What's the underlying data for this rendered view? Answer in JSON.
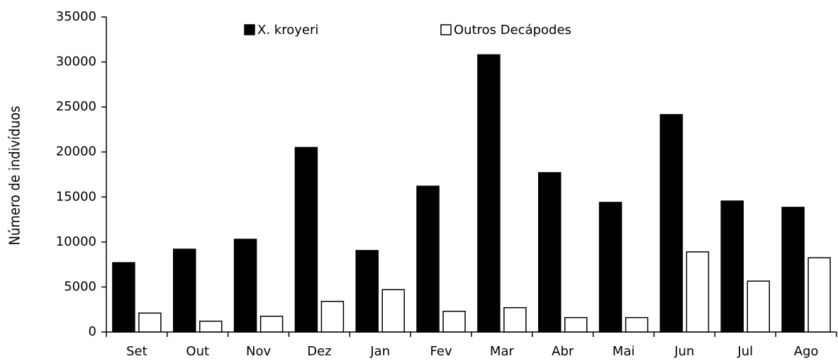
{
  "chart_data": {
    "type": "bar",
    "y_label": "Número de indivíduos",
    "categories": [
      "Set",
      "Out",
      "Nov",
      "Dez",
      "Jan",
      "Fev",
      "Mar",
      "Abr",
      "Mai",
      "Jun",
      "Jul",
      "Ago"
    ],
    "series": [
      {
        "name": "X. kroyeri",
        "color": "#000000",
        "values": [
          7700,
          9200,
          10300,
          20500,
          9050,
          16200,
          30800,
          17700,
          14400,
          24150,
          14550,
          13850
        ]
      },
      {
        "name": "Outros Decápodes",
        "color": "#ffffff",
        "values": [
          2100,
          1200,
          1750,
          3400,
          4700,
          2300,
          2700,
          1600,
          1600,
          8900,
          5650,
          8250
        ]
      }
    ],
    "ylim": [
      0,
      35000
    ],
    "yticks": [
      0,
      5000,
      10000,
      15000,
      20000,
      25000,
      30000,
      35000
    ],
    "legend": "top",
    "grid": false
  }
}
